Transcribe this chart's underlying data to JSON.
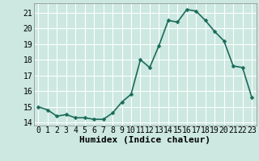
{
  "xlabel": "Humidex (Indice chaleur)",
  "x_values": [
    0,
    1,
    2,
    3,
    4,
    5,
    6,
    7,
    8,
    9,
    10,
    11,
    12,
    13,
    14,
    15,
    16,
    17,
    18,
    19,
    20,
    21,
    22,
    23
  ],
  "y_values": [
    15.0,
    14.8,
    14.4,
    14.5,
    14.3,
    14.3,
    14.2,
    14.2,
    14.6,
    15.3,
    15.8,
    18.0,
    17.5,
    18.9,
    20.5,
    20.4,
    21.2,
    21.1,
    20.5,
    19.8,
    19.2,
    17.6,
    17.5,
    15.6
  ],
  "line_color": "#1a6b5a",
  "marker": "D",
  "marker_size": 2.5,
  "background_color": "#cce8e0",
  "grid_color": "#ffffff",
  "ylim": [
    13.8,
    21.6
  ],
  "xlim": [
    -0.5,
    23.5
  ],
  "yticks": [
    14,
    15,
    16,
    17,
    18,
    19,
    20,
    21
  ],
  "xticks": [
    0,
    1,
    2,
    3,
    4,
    5,
    6,
    7,
    8,
    9,
    10,
    11,
    12,
    13,
    14,
    15,
    16,
    17,
    18,
    19,
    20,
    21,
    22,
    23
  ],
  "tick_fontsize": 7,
  "xlabel_fontsize": 8,
  "linewidth": 1.2
}
